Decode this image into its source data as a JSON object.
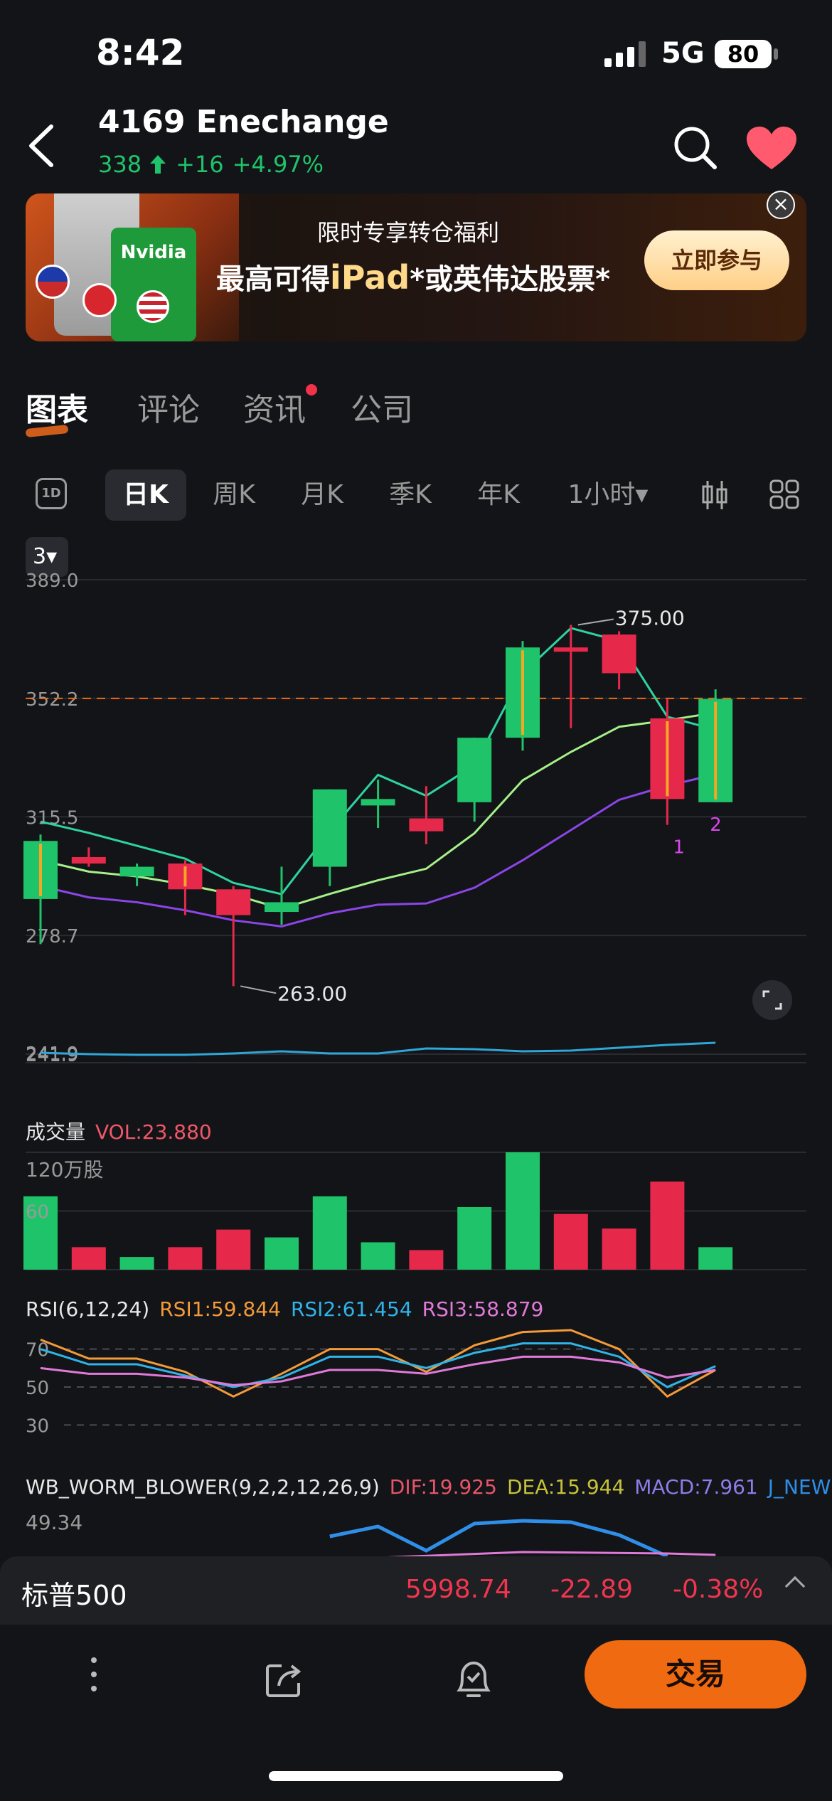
{
  "status": {
    "time": "8:42",
    "network": "5G",
    "battery": "80"
  },
  "header": {
    "title": "4169  Enechange",
    "price": "338",
    "change": "+16",
    "change_pct": "+4.97%"
  },
  "banner": {
    "card_text": "Nvidia",
    "line1": "限时专享转仓福利",
    "line2_pre": "最高可得",
    "line2_bold": "iPad",
    "line2_post": "*或英伟达股票*",
    "cta": "立即参与",
    "close": "×"
  },
  "tabs": [
    {
      "label": "图表",
      "active": true
    },
    {
      "label": "评论"
    },
    {
      "label": "资讯",
      "dot": true
    },
    {
      "label": "公司"
    }
  ],
  "periods": {
    "icon": "1D",
    "items": [
      "日K",
      "周K",
      "月K",
      "季K",
      "年K",
      "1小时▾"
    ],
    "active_index": 0
  },
  "indicator_select": "3▾",
  "chart_data": {
    "type": "candlestick",
    "ylim": [
      241.9,
      389.0
    ],
    "y_ticks": [
      "389.0",
      "352.2",
      "315.5",
      "278.7",
      "241.9"
    ],
    "dashed_price": 352.2,
    "annotations": {
      "high": "375.00",
      "low": "263.00",
      "count1": "1",
      "count2": "2"
    },
    "candles": [
      {
        "o": 290,
        "h": 310,
        "l": 276,
        "c": 308,
        "color": "green"
      },
      {
        "o": 303,
        "h": 306,
        "l": 300,
        "c": 301,
        "color": "red"
      },
      {
        "o": 297,
        "h": 301,
        "l": 294,
        "c": 300,
        "color": "green"
      },
      {
        "o": 301,
        "h": 302,
        "l": 285,
        "c": 293,
        "color": "red"
      },
      {
        "o": 293,
        "h": 294,
        "l": 263,
        "c": 285,
        "color": "red"
      },
      {
        "o": 289,
        "h": 300,
        "l": 282,
        "c": 286,
        "color": "green"
      },
      {
        "o": 300,
        "h": 324,
        "l": 294,
        "c": 324,
        "color": "green"
      },
      {
        "o": 319,
        "h": 327,
        "l": 312,
        "c": 321,
        "color": "green"
      },
      {
        "o": 315,
        "h": 325,
        "l": 307,
        "c": 311,
        "color": "red"
      },
      {
        "o": 320,
        "h": 340,
        "l": 314,
        "c": 340,
        "color": "green"
      },
      {
        "o": 340,
        "h": 370,
        "l": 336,
        "c": 368,
        "color": "green"
      },
      {
        "o": 368,
        "h": 375,
        "l": 343,
        "c": 368,
        "color": "red"
      },
      {
        "o": 372,
        "h": 373,
        "l": 355,
        "c": 360,
        "color": "red"
      },
      {
        "o": 346,
        "h": 352,
        "l": 313,
        "c": 321,
        "color": "red"
      },
      {
        "o": 320,
        "h": 355,
        "l": 320,
        "c": 352,
        "color": "green"
      }
    ],
    "volume": {
      "label": "成交量",
      "value_label": "VOL:23.880",
      "unit": "120万股",
      "tick": "60",
      "ylim": [
        0,
        120
      ],
      "values": [
        75,
        23,
        13,
        23,
        41,
        33,
        75,
        28,
        20,
        64,
        120,
        57,
        42,
        90,
        23
      ],
      "colors": [
        "green",
        "red",
        "green",
        "red",
        "red",
        "green",
        "green",
        "green",
        "red",
        "green",
        "green",
        "red",
        "red",
        "red",
        "green"
      ]
    },
    "rsi": {
      "title": "RSI(6,12,24)",
      "labels": [
        "RSI1:59.844",
        "RSI2:61.454",
        "RSI3:58.879"
      ],
      "ticks": [
        "70",
        "50",
        "30"
      ],
      "ylim": [
        20,
        80
      ],
      "rsi1": [
        75,
        65,
        65,
        58,
        45,
        57,
        70,
        70,
        58,
        72,
        79,
        80,
        70,
        45,
        59
      ],
      "rsi2": [
        70,
        62,
        62,
        56,
        50,
        55,
        66,
        66,
        60,
        68,
        73,
        73,
        66,
        50,
        61
      ],
      "rsi3": [
        60,
        57,
        57,
        55,
        51,
        53,
        59,
        59,
        57,
        62,
        66,
        66,
        63,
        55,
        59
      ]
    },
    "macd": {
      "title": "WB_WORM_BLOWER(9,2,2,12,26,9)",
      "labels": [
        "DIF:19.925",
        "DEA:15.944",
        "MACD:7.961",
        "J_NEW"
      ],
      "tick": "49.34"
    },
    "index_label": "241.9"
  },
  "index_bar": {
    "name": "标普500",
    "price": "5998.74",
    "change": "-22.89",
    "pct": "-0.38%"
  },
  "toolbar": {
    "trade": "交易"
  },
  "colors": {
    "up": "#1fc36a",
    "down": "#e6294b",
    "accent": "#f06a12"
  }
}
